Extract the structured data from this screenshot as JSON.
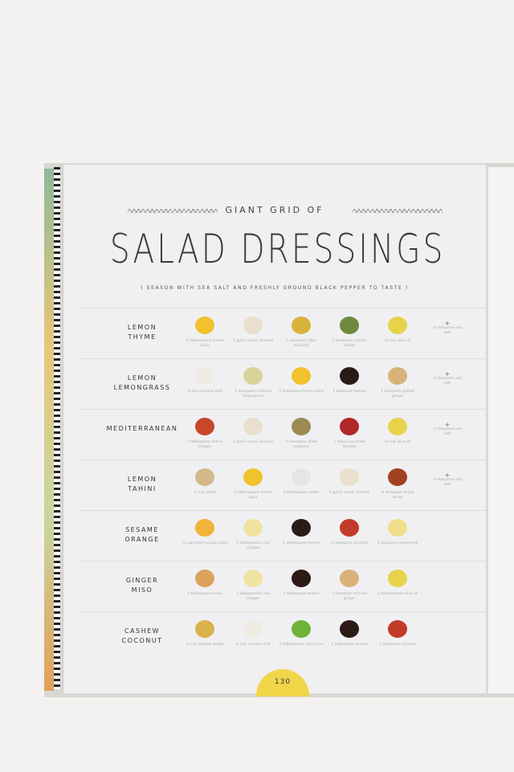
{
  "header": {
    "kicker": "GIANT GRID OF",
    "title": "SALAD DRESSINGS",
    "subtitle": "( SEASON WITH SEA SALT AND FRESHLY GROUND BLACK PEPPER TO TASTE )"
  },
  "salt": {
    "plus": "+",
    "text": "¼ teaspoon sea salt"
  },
  "rows": [
    {
      "name": "LEMON\nTHYME",
      "items": [
        {
          "cap": "2 tablespoons lemon juice",
          "color": "#f2c12e"
        },
        {
          "cap": "1 garlic clove, minced",
          "color": "#e8e0cc"
        },
        {
          "cap": "½ teaspoon Dijon mustard",
          "color": "#d9b23a"
        },
        {
          "cap": "2 teaspoons thyme leaves",
          "color": "#6e8a3c"
        },
        {
          "cap": "¼ cup olive oil",
          "color": "#e6d34a"
        }
      ],
      "salt": true
    },
    {
      "name": "LEMON\nLEMONGRASS",
      "items": [
        {
          "cap": "¼ cup coconut milk",
          "color": "#eeebe2"
        },
        {
          "cap": "2 teaspoons minced lemongrass",
          "color": "#d8d39a"
        },
        {
          "cap": "2 teaspoons lemon juice",
          "color": "#f2c12e"
        },
        {
          "cap": "1 teaspoon tamari",
          "color": "#2b1a16"
        },
        {
          "cap": "1 teaspoon grated ginger",
          "color": "#d9b27a"
        }
      ],
      "salt": true
    },
    {
      "name": "MEDITERRANEAN",
      "items": [
        {
          "cap": "1 tablespoon sherry vinegar",
          "color": "#c8462a"
        },
        {
          "cap": "1 garlic clove, minced",
          "color": "#e8e0cc"
        },
        {
          "cap": "¼ teaspoon dried oregano",
          "color": "#9c8a52"
        },
        {
          "cap": "1 diced sun-dried tomato",
          "color": "#b0272a"
        },
        {
          "cap": "¼ cup olive oil",
          "color": "#e6d34a"
        }
      ],
      "salt": true
    },
    {
      "name": "LEMON\nTAHINI",
      "items": [
        {
          "cap": "¼ cup tahini",
          "color": "#d2b98a"
        },
        {
          "cap": "2 tablespoons lemon juice",
          "color": "#f2c12e"
        },
        {
          "cap": "3 tablespoons water",
          "color": "#e4e6e6"
        },
        {
          "cap": "1 garlic clove, minced",
          "color": "#e8e0cc"
        },
        {
          "cap": "½ teaspoon maple syrup",
          "color": "#a3421e"
        }
      ],
      "salt": true
    },
    {
      "name": "SESAME\nORANGE",
      "items": [
        {
          "cap": "¼ cup fresh orange juice",
          "color": "#f3b23a"
        },
        {
          "cap": "2 tablespoons rice vinegar",
          "color": "#f0e3a0"
        },
        {
          "cap": "1 tablespoon tamari",
          "color": "#2b1a16"
        },
        {
          "cap": "½ teaspoon sriracha",
          "color": "#c23a2a"
        },
        {
          "cap": "1 teaspoon sesame oil",
          "color": "#f0df8a"
        }
      ],
      "salt": false
    },
    {
      "name": "GINGER\nMISO",
      "items": [
        {
          "cap": "2 tablespoons miso",
          "color": "#d9a45a"
        },
        {
          "cap": "2 tablespoons rice vinegar",
          "color": "#f0e3a0"
        },
        {
          "cap": "1 tablespoon tamari",
          "color": "#2b1a16"
        },
        {
          "cap": "1 teaspoon minced ginger",
          "color": "#d9b27a"
        },
        {
          "cap": "2 tablespoons olive oil",
          "color": "#e6d34a"
        }
      ],
      "salt": false
    },
    {
      "name": "CASHEW\nCOCONUT",
      "items": [
        {
          "cap": "¼ cup cashew butter",
          "color": "#d9b24a"
        },
        {
          "cap": "¼ cup coconut milk",
          "color": "#eeebe2"
        },
        {
          "cap": "2 tablespoons lime juice",
          "color": "#6fb33a"
        },
        {
          "cap": "1 tablespoon tamari",
          "color": "#2b1a16"
        },
        {
          "cap": "1 teaspoon sriracha",
          "color": "#c23a2a"
        }
      ],
      "salt": false
    }
  ],
  "page_number": "130"
}
